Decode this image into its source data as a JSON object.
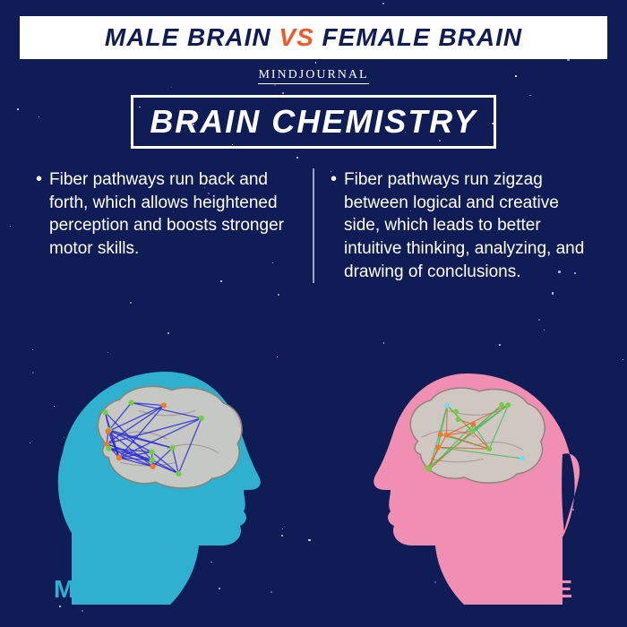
{
  "background_color": "#0f1c56",
  "title_banner": {
    "parts": [
      {
        "text": "MALE BRAIN ",
        "color": "#0f1c56"
      },
      {
        "text": "VS",
        "color": "#f05a28"
      },
      {
        "text": " FEMALE BRAIN",
        "color": "#0f1c56"
      }
    ],
    "bg": "#ffffff",
    "fontsize": 28
  },
  "source": {
    "text": "MINDJOURNAL",
    "color": "#ffffff",
    "fontsize": 14
  },
  "subtitle": {
    "text": "BRAIN CHEMISTRY",
    "color": "#ffffff",
    "border_color": "#ffffff",
    "fontsize": 36
  },
  "bullets": {
    "male": "Fiber pathways run back and forth, which allows heightened perception and boosts stronger motor skills.",
    "female": "Fiber pathways run zigzag between logical and creative side, which leads to better intuitive thinking, analyzing, and drawing of conclusions.",
    "text_color": "#ffffff",
    "fontsize": 19,
    "divider_color": "#9aa6c7"
  },
  "heads": {
    "male": {
      "silhouette_color": "#2fb0cf",
      "label": "MALE",
      "label_color": "#2fb0cf",
      "brain_fill": "#cfcac4",
      "network_color": "#2b2bd6",
      "node_colors": [
        "#6fcf3f",
        "#f07a2a"
      ]
    },
    "female": {
      "silhouette_color": "#f18fb3",
      "label": "FEMALE",
      "label_color": "#f18fb3",
      "brain_fill": "#cfcac4",
      "network_colors": [
        "#e0672a",
        "#3fbf5a"
      ],
      "node_colors": [
        "#6fe0f0",
        "#f07a2a",
        "#6fcf3f"
      ]
    }
  },
  "stars": {
    "color": "#ffffff",
    "count": 70,
    "seed": 42
  }
}
